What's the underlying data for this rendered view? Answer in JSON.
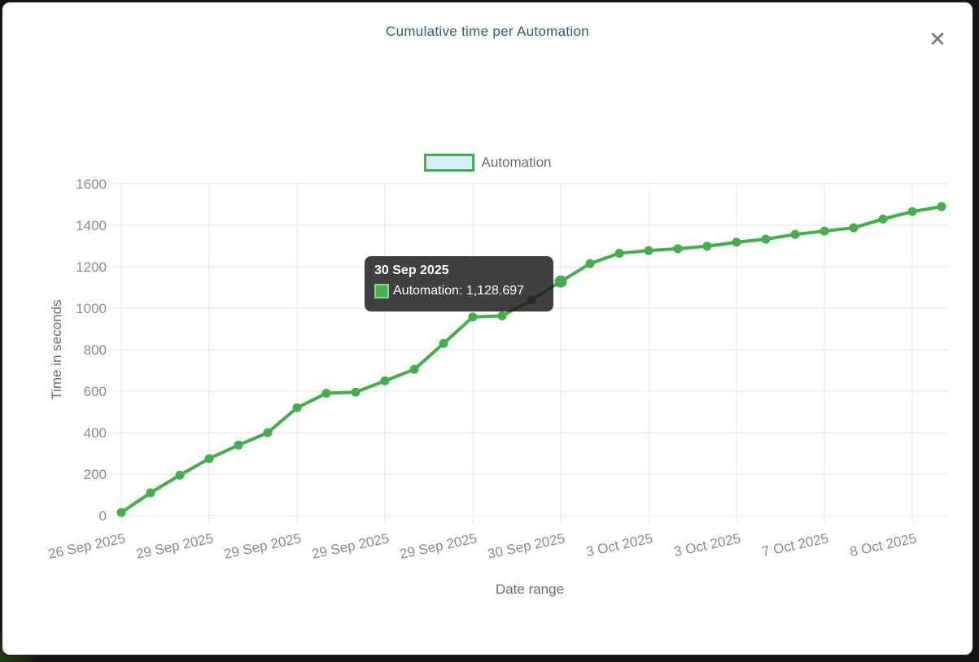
{
  "modal": {
    "title": "Cumulative time per Automation",
    "close_icon": "✕"
  },
  "legend": {
    "label": "Automation"
  },
  "tooltip": {
    "title": "30 Sep 2025",
    "label": "Automation: 1,128.697"
  },
  "chart_data": {
    "type": "line",
    "series_name": "Automation",
    "xlabel": "Date range",
    "ylabel": "Time in seconds",
    "ylim": [
      0,
      1600
    ],
    "y_ticks": [
      0,
      200,
      400,
      600,
      800,
      1000,
      1200,
      1400,
      1600
    ],
    "x_tick_labels": [
      "26 Sep 2025",
      "29 Sep 2025",
      "29 Sep 2025",
      "29 Sep 2025",
      "29 Sep 2025",
      "30 Sep 2025",
      "3 Oct 2025",
      "3 Oct 2025",
      "7 Oct 2025",
      "8 Oct 2025"
    ],
    "x_tick_every": 3,
    "values": [
      15,
      110,
      195,
      275,
      340,
      400,
      520,
      590,
      595,
      650,
      705,
      830,
      958,
      963,
      1040,
      1128.697,
      1215,
      1265,
      1278,
      1287,
      1299,
      1318,
      1333,
      1356,
      1372,
      1388,
      1430,
      1466,
      1490
    ],
    "highlight_index": 15,
    "highlight_value_label": "1,128.697",
    "line_color": "#42b04a",
    "legend_fill": "#d6ecfa",
    "grid_color": "#e6e6e6",
    "tick_color": "#8b8b8b",
    "axis_title_color": "#6d6d6d",
    "legend_position": "top",
    "grid": true
  }
}
